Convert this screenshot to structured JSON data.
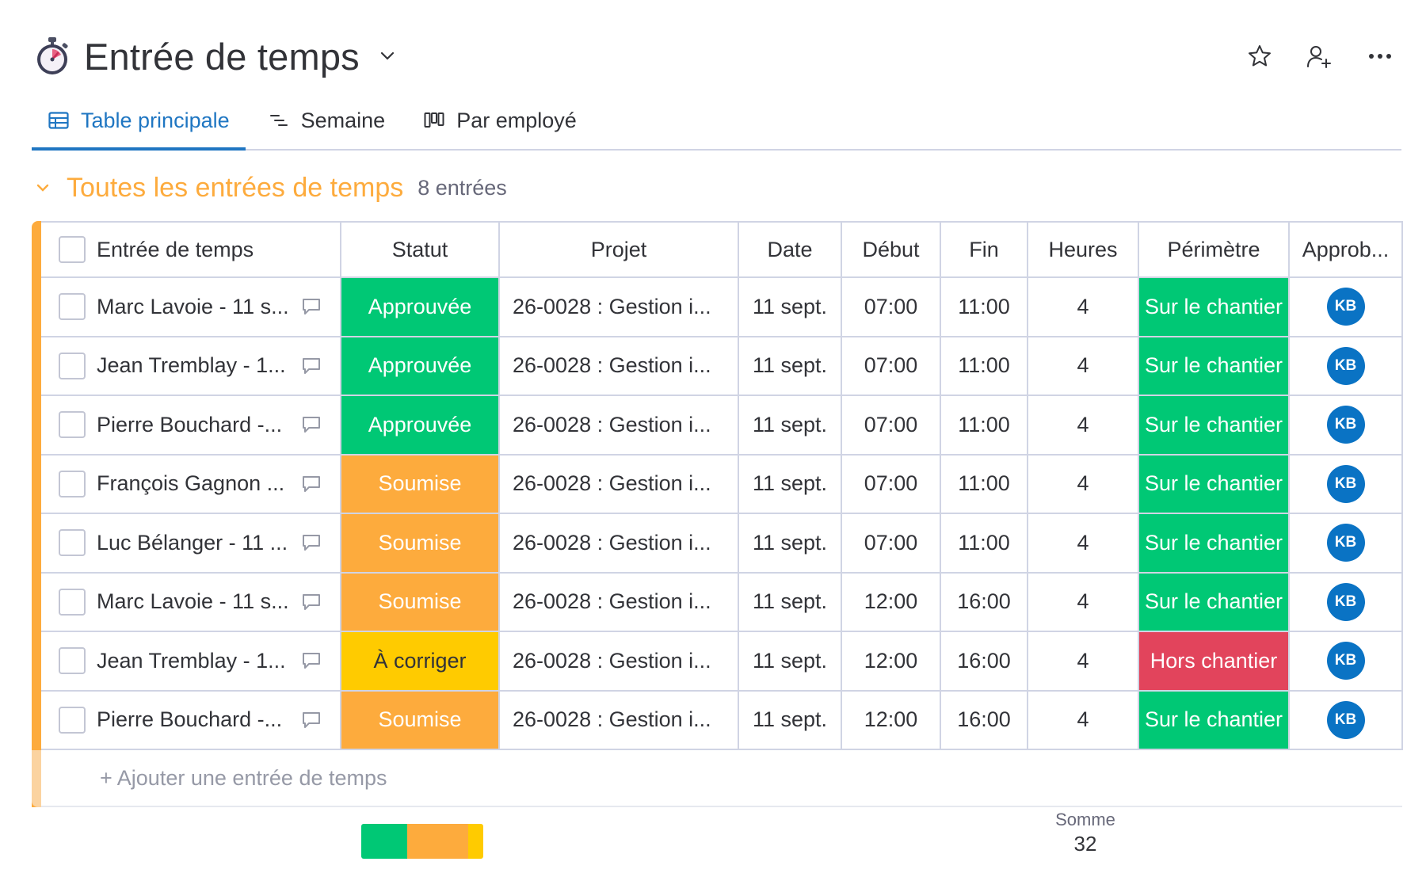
{
  "board": {
    "title": "Entrée de temps",
    "icon": "stopwatch-icon"
  },
  "tabs": [
    {
      "label": "Table principale",
      "icon": "table-icon",
      "active": true
    },
    {
      "label": "Semaine",
      "icon": "timeline-icon",
      "active": false
    },
    {
      "label": "Par employé",
      "icon": "kanban-icon",
      "active": false
    }
  ],
  "group": {
    "title": "Toutes les entrées de temps",
    "count": "8 entrées",
    "color": "#fdab3d"
  },
  "columns": [
    "Entrée de temps",
    "Statut",
    "Projet",
    "Date",
    "Début",
    "Fin",
    "Heures",
    "Périmètre",
    "Approb..."
  ],
  "status_colors": {
    "Approuvée": "#00c875",
    "Soumise": "#fdab3d",
    "À corriger": "#ffcb00"
  },
  "perimetre_colors": {
    "Sur le chantier": "#00c875",
    "Hors chantier": "#e2445c"
  },
  "rows": [
    {
      "name": "Marc Lavoie - 11 s...",
      "statut": "Approuvée",
      "projet": "26-0028 : Gestion i...",
      "date": "11 sept.",
      "debut": "07:00",
      "fin": "11:00",
      "heures": "4",
      "perimetre": "Sur le chantier",
      "approb": "KB"
    },
    {
      "name": "Jean Tremblay - 1...",
      "statut": "Approuvée",
      "projet": "26-0028 : Gestion i...",
      "date": "11 sept.",
      "debut": "07:00",
      "fin": "11:00",
      "heures": "4",
      "perimetre": "Sur le chantier",
      "approb": "KB"
    },
    {
      "name": "Pierre Bouchard -...",
      "statut": "Approuvée",
      "projet": "26-0028 : Gestion i...",
      "date": "11 sept.",
      "debut": "07:00",
      "fin": "11:00",
      "heures": "4",
      "perimetre": "Sur le chantier",
      "approb": "KB"
    },
    {
      "name": "François Gagnon ...",
      "statut": "Soumise",
      "projet": "26-0028 : Gestion i...",
      "date": "11 sept.",
      "debut": "07:00",
      "fin": "11:00",
      "heures": "4",
      "perimetre": "Sur le chantier",
      "approb": "KB"
    },
    {
      "name": "Luc Bélanger - 11 ...",
      "statut": "Soumise",
      "projet": "26-0028 : Gestion i...",
      "date": "11 sept.",
      "debut": "07:00",
      "fin": "11:00",
      "heures": "4",
      "perimetre": "Sur le chantier",
      "approb": "KB"
    },
    {
      "name": "Marc Lavoie - 11 s...",
      "statut": "Soumise",
      "projet": "26-0028 : Gestion i...",
      "date": "11 sept.",
      "debut": "12:00",
      "fin": "16:00",
      "heures": "4",
      "perimetre": "Sur le chantier",
      "approb": "KB"
    },
    {
      "name": "Jean Tremblay - 1...",
      "statut": "À corriger",
      "projet": "26-0028 : Gestion i...",
      "date": "11 sept.",
      "debut": "12:00",
      "fin": "16:00",
      "heures": "4",
      "perimetre": "Hors chantier",
      "approb": "KB"
    },
    {
      "name": "Pierre Bouchard -...",
      "statut": "Soumise",
      "projet": "26-0028 : Gestion i...",
      "date": "11 sept.",
      "debut": "12:00",
      "fin": "16:00",
      "heures": "4",
      "perimetre": "Sur le chantier",
      "approb": "KB"
    }
  ],
  "add_row_label": "+ Ajouter une entrée de temps",
  "summary": {
    "status_distribution": [
      {
        "status": "Approuvée",
        "count": 3,
        "color": "#00c875"
      },
      {
        "status": "Soumise",
        "count": 4,
        "color": "#fdab3d"
      },
      {
        "status": "À corriger",
        "count": 1,
        "color": "#ffcb00"
      }
    ],
    "sum_label": "Somme",
    "sum_value": "32"
  },
  "avatar_color": "#0a73c4"
}
